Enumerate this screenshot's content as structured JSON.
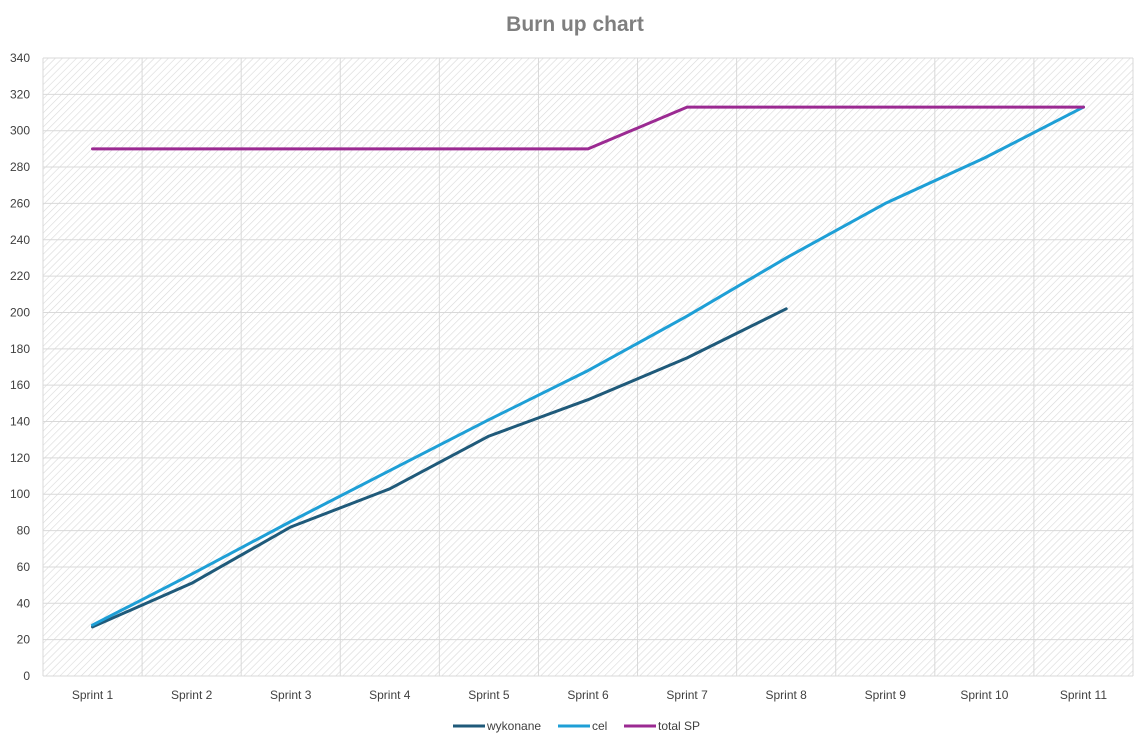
{
  "chart_data": {
    "type": "line",
    "title": "Burn up chart",
    "xlabel": "",
    "ylabel": "",
    "categories": [
      "Sprint 1",
      "Sprint 2",
      "Sprint 3",
      "Sprint 4",
      "Sprint 5",
      "Sprint 6",
      "Sprint 7",
      "Sprint 8",
      "Sprint 9",
      "Sprint 10",
      "Sprint 11"
    ],
    "ylim": [
      0,
      340
    ],
    "yticks": [
      0,
      20,
      40,
      60,
      80,
      100,
      120,
      140,
      160,
      180,
      200,
      220,
      240,
      260,
      280,
      300,
      320,
      340
    ],
    "grid": true,
    "legend_position": "bottom",
    "series": [
      {
        "name": "wykonane",
        "color": "#1f5a7a",
        "values": [
          27,
          51,
          82,
          103,
          132,
          152,
          175,
          202,
          null,
          null,
          null
        ]
      },
      {
        "name": "cel",
        "color": "#1e9fd6",
        "values": [
          28,
          56,
          85,
          113,
          141,
          168,
          198,
          230,
          260,
          285,
          313
        ]
      },
      {
        "name": "total SP",
        "color": "#9b2a92",
        "values": [
          290,
          290,
          290,
          290,
          290,
          290,
          313,
          313,
          313,
          313,
          313
        ]
      }
    ]
  }
}
